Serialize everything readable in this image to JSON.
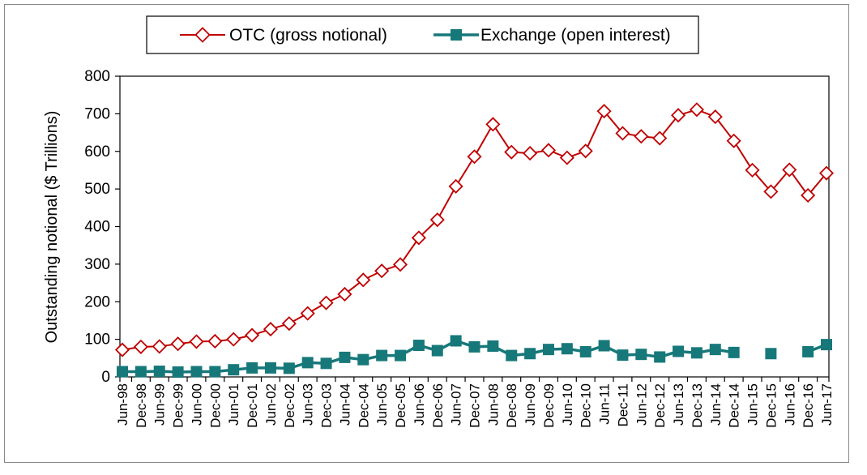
{
  "chart_data": {
    "type": "line",
    "xlabel": "",
    "ylabel": "Outstanding notional ($ Trillions)",
    "ylim": [
      0,
      800
    ],
    "yticks": [
      0,
      100,
      200,
      300,
      400,
      500,
      600,
      700,
      800
    ],
    "grid": false,
    "legend": "top-center",
    "categories": [
      "Jun-98",
      "Dec-98",
      "Jun-99",
      "Dec-99",
      "Jun-00",
      "Dec-00",
      "Jun-01",
      "Dec-01",
      "Jun-02",
      "Dec-02",
      "Jun-03",
      "Dec-03",
      "Jun-04",
      "Dec-04",
      "Jun-05",
      "Dec-05",
      "Jun-06",
      "Dec-06",
      "Jun-07",
      "Dec-07",
      "Jun-08",
      "Dec-08",
      "Jun-09",
      "Dec-09",
      "Jun-10",
      "Dec-10",
      "Jun-11",
      "Dec-11",
      "Jun-12",
      "Dec-12",
      "Jun-13",
      "Dec-13",
      "Jun-14",
      "Dec-14",
      "Jun-15",
      "Dec-15",
      "Jun-16",
      "Dec-16",
      "Jun-17"
    ],
    "series": [
      {
        "name": "OTC (gross notional)",
        "color": "#c00000",
        "marker": "diamond-open",
        "values": [
          72,
          80,
          81,
          88,
          94,
          95,
          100,
          111,
          127,
          142,
          169,
          197,
          220,
          258,
          282,
          299,
          370,
          418,
          507,
          586,
          672,
          598,
          595,
          603,
          583,
          601,
          707,
          648,
          640,
          635,
          696,
          711,
          692,
          628,
          550,
          493,
          551,
          483,
          542
        ]
      },
      {
        "name": "Exchange (open interest)",
        "color": "#17787a",
        "marker": "square-filled",
        "values": [
          14,
          14,
          15,
          13,
          14,
          14,
          19,
          24,
          24,
          23,
          38,
          36,
          52,
          46,
          57,
          57,
          84,
          70,
          96,
          80,
          82,
          57,
          62,
          73,
          75,
          67,
          83,
          58,
          60,
          53,
          68,
          64,
          73,
          65,
          null,
          62,
          null,
          67,
          86
        ]
      }
    ]
  }
}
